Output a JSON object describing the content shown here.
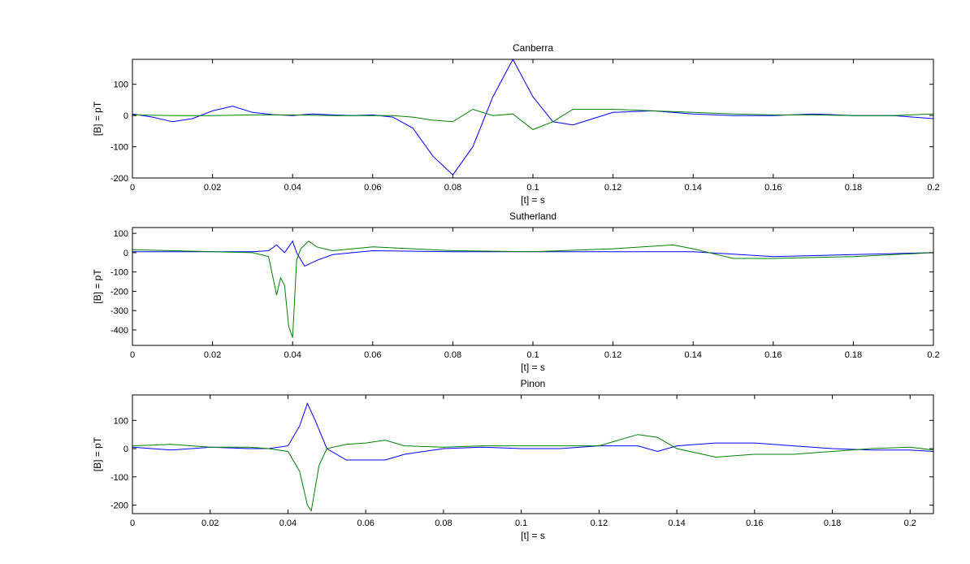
{
  "chart_data": [
    {
      "type": "line",
      "title": "Canberra",
      "xlabel": "[t] = s",
      "ylabel": "[B] = pT",
      "xlim": [
        0,
        0.2
      ],
      "ylim": [
        -200,
        180
      ],
      "xticks": [
        0,
        0.02,
        0.04,
        0.06,
        0.08,
        0.1,
        0.12,
        0.14,
        0.16,
        0.18,
        0.2
      ],
      "xtick_labels": [
        "0",
        "0.02",
        "0.04",
        "0.06",
        "0.08",
        "0.1",
        "0.12",
        "0.14",
        "0.16",
        "0.18",
        "0.2"
      ],
      "yticks": [
        -200,
        -100,
        0,
        100
      ],
      "ytick_labels": [
        "-200",
        "-100",
        "0",
        "100"
      ],
      "grid": false,
      "series": [
        {
          "color": "#0000ff",
          "x": [
            0,
            0.005,
            0.01,
            0.015,
            0.02,
            0.025,
            0.03,
            0.035,
            0.04,
            0.045,
            0.05,
            0.055,
            0.06,
            0.065,
            0.07,
            0.075,
            0.08,
            0.085,
            0.09,
            0.095,
            0.1,
            0.105,
            0.11,
            0.115,
            0.12,
            0.13,
            0.14,
            0.15,
            0.16,
            0.17,
            0.18,
            0.19,
            0.2
          ],
          "y": [
            5,
            -5,
            -20,
            -10,
            15,
            30,
            10,
            3,
            0,
            5,
            2,
            0,
            2,
            -5,
            -40,
            -130,
            -190,
            -100,
            60,
            180,
            60,
            -20,
            -30,
            -10,
            10,
            15,
            5,
            0,
            0,
            5,
            0,
            0,
            -10
          ]
        },
        {
          "color": "#008000",
          "x": [
            0,
            0.01,
            0.02,
            0.03,
            0.04,
            0.05,
            0.06,
            0.065,
            0.07,
            0.075,
            0.08,
            0.085,
            0.09,
            0.095,
            0.1,
            0.105,
            0.11,
            0.12,
            0.13,
            0.14,
            0.15,
            0.16,
            0.17,
            0.18,
            0.19,
            0.2
          ],
          "y": [
            2,
            0,
            0,
            2,
            2,
            0,
            0,
            0,
            -5,
            -15,
            -20,
            20,
            0,
            5,
            -45,
            -20,
            20,
            20,
            15,
            10,
            5,
            2,
            2,
            0,
            0,
            5
          ]
        }
      ]
    },
    {
      "type": "line",
      "title": "Sutherland",
      "xlabel": "[t] = s",
      "ylabel": "[B] = pT",
      "xlim": [
        0,
        0.2
      ],
      "ylim": [
        -480,
        130
      ],
      "xticks": [
        0,
        0.02,
        0.04,
        0.06,
        0.08,
        0.1,
        0.12,
        0.14,
        0.16,
        0.18,
        0.2
      ],
      "xtick_labels": [
        "0",
        "0.02",
        "0.04",
        "0.06",
        "0.08",
        "0.1",
        "0.12",
        "0.14",
        "0.16",
        "0.18",
        "0.2"
      ],
      "yticks": [
        -400,
        -300,
        -200,
        -100,
        0,
        100
      ],
      "ytick_labels": [
        "-400",
        "-300",
        "-200",
        "-100",
        "0",
        "100"
      ],
      "grid": false,
      "series": [
        {
          "color": "#0000ff",
          "x": [
            0,
            0.01,
            0.02,
            0.03,
            0.034,
            0.036,
            0.038,
            0.039,
            0.04,
            0.041,
            0.043,
            0.046,
            0.05,
            0.055,
            0.06,
            0.08,
            0.1,
            0.12,
            0.14,
            0.16,
            0.18,
            0.2
          ],
          "y": [
            5,
            5,
            5,
            5,
            10,
            40,
            0,
            30,
            60,
            0,
            -70,
            -40,
            -10,
            0,
            10,
            5,
            5,
            5,
            5,
            -20,
            -10,
            0
          ]
        },
        {
          "color": "#008000",
          "x": [
            0,
            0.01,
            0.02,
            0.03,
            0.034,
            0.036,
            0.037,
            0.038,
            0.039,
            0.04,
            0.041,
            0.042,
            0.044,
            0.046,
            0.05,
            0.06,
            0.07,
            0.08,
            0.1,
            0.12,
            0.135,
            0.14,
            0.15,
            0.16,
            0.18,
            0.2
          ],
          "y": [
            15,
            10,
            5,
            0,
            -20,
            -220,
            -130,
            -170,
            -380,
            -440,
            -40,
            20,
            60,
            30,
            10,
            30,
            20,
            10,
            5,
            20,
            40,
            20,
            -30,
            -30,
            -20,
            0
          ]
        }
      ]
    },
    {
      "type": "line",
      "title": "Pinon",
      "xlabel": "[t] = s",
      "ylabel": "[B] = pT",
      "xlim": [
        0,
        0.206
      ],
      "ylim": [
        -230,
        190
      ],
      "xticks": [
        0,
        0.02,
        0.04,
        0.06,
        0.08,
        0.1,
        0.12,
        0.14,
        0.16,
        0.18,
        0.2
      ],
      "xtick_labels": [
        "0",
        "0.02",
        "0.04",
        "0.06",
        "0.08",
        "0.1",
        "0.12",
        "0.14",
        "0.16",
        "0.18",
        "0.2"
      ],
      "yticks": [
        -200,
        -100,
        0,
        100
      ],
      "ytick_labels": [
        "-200",
        "-100",
        "0",
        "100"
      ],
      "grid": false,
      "series": [
        {
          "color": "#0000ff",
          "x": [
            0,
            0.01,
            0.02,
            0.03,
            0.035,
            0.04,
            0.043,
            0.045,
            0.047,
            0.05,
            0.055,
            0.06,
            0.065,
            0.07,
            0.08,
            0.09,
            0.1,
            0.11,
            0.12,
            0.13,
            0.135,
            0.14,
            0.15,
            0.16,
            0.17,
            0.18,
            0.19,
            0.2,
            0.206
          ],
          "y": [
            5,
            -5,
            5,
            0,
            0,
            10,
            80,
            160,
            100,
            0,
            -40,
            -40,
            -40,
            -20,
            0,
            5,
            0,
            0,
            10,
            10,
            -10,
            10,
            20,
            20,
            10,
            0,
            -5,
            -5,
            -10
          ]
        },
        {
          "color": "#008000",
          "x": [
            0,
            0.01,
            0.02,
            0.03,
            0.035,
            0.04,
            0.043,
            0.045,
            0.046,
            0.048,
            0.05,
            0.055,
            0.06,
            0.065,
            0.07,
            0.08,
            0.09,
            0.1,
            0.11,
            0.12,
            0.125,
            0.13,
            0.135,
            0.14,
            0.15,
            0.16,
            0.17,
            0.18,
            0.19,
            0.2,
            0.206
          ],
          "y": [
            10,
            15,
            5,
            5,
            0,
            -10,
            -80,
            -200,
            -220,
            -60,
            0,
            15,
            20,
            30,
            10,
            5,
            10,
            10,
            10,
            10,
            30,
            50,
            40,
            0,
            -30,
            -20,
            -20,
            -10,
            0,
            5,
            -5
          ]
        }
      ]
    }
  ]
}
